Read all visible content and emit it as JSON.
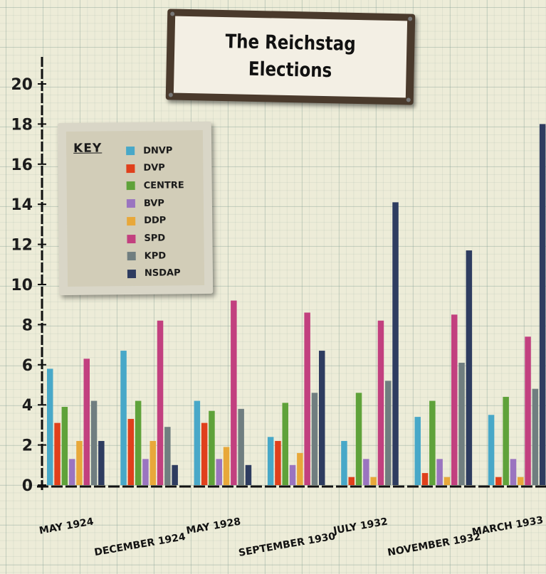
{
  "chart_data": {
    "type": "bar",
    "title": "The Reichstag Elections",
    "title_lines": [
      "The Reichstag",
      "Elections"
    ],
    "xlabel": "",
    "ylabel": "",
    "ylim": [
      0,
      20
    ],
    "yticks": [
      0,
      2,
      4,
      6,
      8,
      10,
      12,
      14,
      16,
      18,
      20
    ],
    "ytick_labels": [
      "0",
      "2",
      "4",
      "6",
      "8",
      "10",
      "12",
      "14",
      "16",
      "18",
      "20"
    ],
    "grid": true,
    "legend_position": "top-left",
    "legend_title": "KEY",
    "categories": [
      "MAY 1924",
      "DECEMBER 1924",
      "MAY 1928",
      "SEPTEMBER 1930",
      "JULY 1932",
      "NOVEMBER 1932",
      "MARCH 1933"
    ],
    "series": [
      {
        "name": "DNVP",
        "color": "#48a8c8",
        "values": [
          5.8,
          6.7,
          4.2,
          2.4,
          2.2,
          3.4,
          3.5
        ]
      },
      {
        "name": "DVP",
        "color": "#e0401c",
        "values": [
          3.1,
          3.3,
          3.1,
          2.2,
          0.4,
          0.6,
          0.4
        ]
      },
      {
        "name": "CENTRE",
        "color": "#5fa23a",
        "values": [
          3.9,
          4.2,
          3.7,
          4.1,
          4.6,
          4.2,
          4.4
        ]
      },
      {
        "name": "BVP",
        "color": "#9a74c0",
        "values": [
          1.3,
          1.3,
          1.3,
          1.0,
          1.3,
          1.3,
          1.3
        ]
      },
      {
        "name": "DDP",
        "color": "#e8a83a",
        "values": [
          2.2,
          2.2,
          1.9,
          1.6,
          0.4,
          0.4,
          0.4
        ]
      },
      {
        "name": "SPD",
        "color": "#c2407f",
        "values": [
          6.3,
          8.2,
          9.2,
          8.6,
          8.2,
          8.5,
          7.4
        ]
      },
      {
        "name": "KPD",
        "color": "#707e80",
        "values": [
          4.2,
          2.9,
          3.8,
          4.6,
          5.2,
          6.1,
          4.8
        ]
      },
      {
        "name": "NSDAP",
        "color": "#2e3c60",
        "values": [
          2.2,
          1.0,
          1.0,
          6.7,
          14.1,
          11.7,
          18.0
        ]
      }
    ]
  }
}
